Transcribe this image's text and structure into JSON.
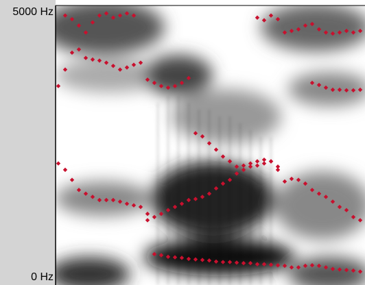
{
  "chart_data": {
    "type": "formant",
    "ylim": [
      0,
      5000
    ],
    "yticks": [
      {
        "value": 5000,
        "label": "5000 Hz"
      },
      {
        "value": 0,
        "label": "0 Hz"
      }
    ],
    "color": "#c8102e",
    "series": [
      {
        "values": [
          2150,
          2030,
          1840,
          1650,
          1580,
          1520,
          1460,
          1460,
          1460,
          1430,
          1390,
          1360,
          1330,
          1200,
          440,
          420,
          390,
          380,
          370,
          350,
          340,
          330,
          320,
          300,
          290,
          290,
          280,
          270,
          270,
          250,
          250,
          240,
          230,
          220,
          190,
          190,
          220,
          230,
          220,
          190,
          160,
          150,
          140,
          130,
          110
        ]
      },
      {
        "values": [
          null,
          null,
          null,
          null,
          null,
          null,
          null,
          null,
          null,
          null,
          null,
          null,
          null,
          1080,
          1140,
          1200,
          1270,
          1330,
          1390,
          1460,
          1480,
          1520,
          1580,
          1680,
          1770,
          1840,
          1960,
          2030,
          2090,
          2110,
          2150,
          2190,
          2030,
          1810,
          1860,
          1840,
          1770,
          1650,
          1580,
          1520,
          1430,
          1330,
          1270,
          1140,
          1080
        ]
      },
      {
        "values": [
          3610,
          3920,
          4240,
          4300,
          4140,
          4110,
          4090,
          4050,
          3990,
          3920,
          3960,
          4010,
          4050,
          3730,
          3670,
          3610,
          3580,
          3610,
          3670,
          3760,
          2720,
          2660,
          2530,
          2410,
          2280,
          2190,
          2090,
          2110,
          2150,
          2190,
          2220,
          2190,
          2090,
          null,
          null,
          null,
          null,
          3670,
          3630,
          3580,
          3540,
          3540,
          3530,
          3530,
          3540
        ]
      },
      {
        "values": [
          null,
          4940,
          4870,
          4750,
          4620,
          4810,
          4940,
          4980,
          4900,
          4940,
          4980,
          4940,
          null,
          null,
          null,
          null,
          null,
          null,
          null,
          null,
          null,
          null,
          null,
          null,
          null,
          null,
          null,
          null,
          null,
          4900,
          4850,
          4940,
          4870,
          4620,
          4650,
          4680,
          4750,
          4780,
          4680,
          4620,
          4600,
          4620,
          4650,
          4620,
          4650
        ]
      }
    ]
  }
}
